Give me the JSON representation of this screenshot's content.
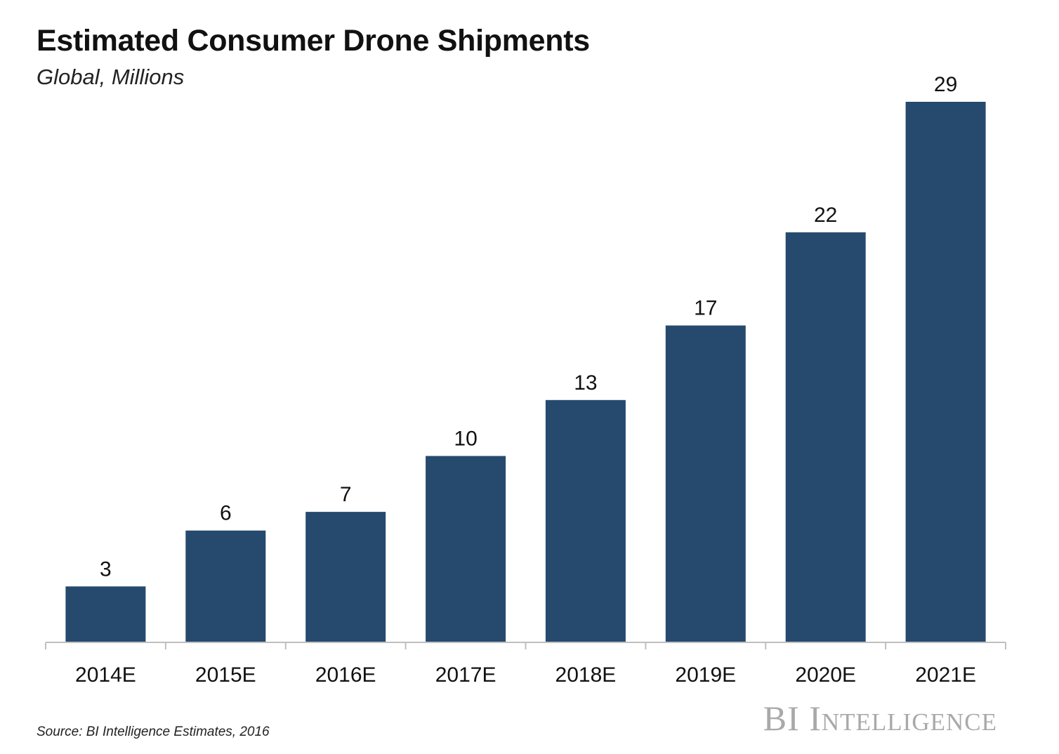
{
  "header": {
    "title": "Estimated Consumer Drone Shipments",
    "subtitle": "Global, Millions"
  },
  "footer": {
    "source": "Source: BI Intelligence Estimates, 2016",
    "brand": "BI Intelligence"
  },
  "colors": {
    "bar": "#264a6e",
    "axis": "#bfbfbf",
    "label": "#111111"
  },
  "chart_data": {
    "type": "bar",
    "title": "Estimated Consumer Drone Shipments",
    "subtitle": "Global, Millions",
    "xlabel": "",
    "ylabel": "",
    "categories": [
      "2014E",
      "2015E",
      "2016E",
      "2017E",
      "2018E",
      "2019E",
      "2020E",
      "2021E"
    ],
    "values": [
      3,
      6,
      7,
      10,
      13,
      17,
      22,
      29
    ],
    "data_labels": [
      "3",
      "6",
      "7",
      "10",
      "13",
      "17",
      "22",
      "29"
    ],
    "ylim": [
      0,
      29
    ],
    "grid": false,
    "legend": "none"
  }
}
